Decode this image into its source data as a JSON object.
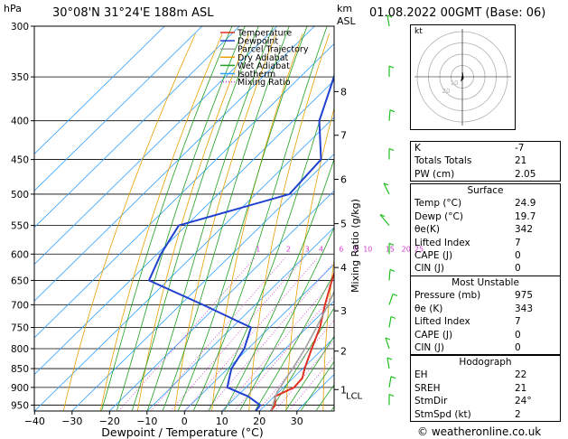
{
  "header": {
    "hpa_label": "hPa",
    "location": "30°08'N  31°24'E  188m  ASL",
    "km_label": "km",
    "asl_label": "ASL",
    "datetime": "01.08.2022  00GMT  (Base: 06)"
  },
  "chart_data": {
    "type": "line",
    "title": "30°08'N 31°24'E 188m ASL",
    "xlabel": "Dewpoint / Temperature (°C)",
    "ylabel": "hPa",
    "right_axis_label": "Mixing Ratio (g/kg)",
    "x_ticks": [
      -40,
      -30,
      -20,
      -10,
      0,
      10,
      20,
      30
    ],
    "x_tick_labels": [
      "−40",
      "−30",
      "−20",
      "−10",
      "0",
      "10",
      "20",
      "30"
    ],
    "pressure_ticks": [
      300,
      350,
      400,
      450,
      500,
      550,
      600,
      650,
      700,
      750,
      800,
      850,
      900,
      950
    ],
    "km_ticks": [
      {
        "label": "8",
        "pressure": 366
      },
      {
        "label": "7",
        "pressure": 418
      },
      {
        "label": "6",
        "pressure": 478
      },
      {
        "label": "5",
        "pressure": 547
      },
      {
        "label": "4",
        "pressure": 625
      },
      {
        "label": "3",
        "pressure": 713
      },
      {
        "label": "2",
        "pressure": 806
      },
      {
        "label": "1",
        "pressure": 906
      }
    ],
    "lcl_label": "LCL",
    "lcl_pressure": 912,
    "mixing_ratio_labels": [
      "1",
      "2",
      "3",
      "4",
      "6",
      "8",
      "10",
      "15",
      "20",
      "25"
    ],
    "mixing_ratio_values": [
      1,
      2,
      3,
      4,
      6,
      8,
      10,
      15,
      20,
      25
    ],
    "legend": [
      "Temperature",
      "Dewpoint",
      "Parcel Trajectory",
      "Dry Adiabat",
      "Wet Adiabat",
      "Isotherm",
      "Mixing Ratio"
    ],
    "series": [
      {
        "name": "Temperature",
        "color": "#e03020",
        "points": [
          [
            967,
            23.0
          ],
          [
            950,
            22.6
          ],
          [
            925,
            20.2
          ],
          [
            900,
            22.8
          ],
          [
            875,
            22.5
          ],
          [
            850,
            20.5
          ],
          [
            800,
            17.0
          ],
          [
            750,
            13.4
          ],
          [
            700,
            8.6
          ],
          [
            650,
            3.8
          ],
          [
            600,
            -1.0
          ],
          [
            550,
            -6.5
          ],
          [
            500,
            -11.8
          ],
          [
            450,
            -19.0
          ],
          [
            400,
            -26.5
          ],
          [
            358,
            -34.3
          ]
        ]
      },
      {
        "name": "Dewpoint",
        "color": "#2040d0",
        "points": [
          [
            967,
            19.0
          ],
          [
            950,
            18.6
          ],
          [
            925,
            13.0
          ],
          [
            900,
            5.0
          ],
          [
            875,
            3.0
          ],
          [
            850,
            1.0
          ],
          [
            800,
            -1.0
          ],
          [
            750,
            -5.0
          ],
          [
            700,
            -24.0
          ],
          [
            650,
            -45.0
          ],
          [
            600,
            -49.0
          ],
          [
            550,
            -52.0
          ],
          [
            500,
            -31.0
          ],
          [
            450,
            -32.0
          ],
          [
            400,
            -43.0
          ],
          [
            350,
            -51.0
          ],
          [
            300,
            -60.0
          ]
        ]
      },
      {
        "name": "Parcel Trajectory",
        "color": "#a0a0a0",
        "points": [
          [
            967,
            23.0
          ],
          [
            912,
            19.5
          ],
          [
            850,
            17.3
          ],
          [
            800,
            15.2
          ],
          [
            750,
            12.5
          ],
          [
            700,
            9.4
          ],
          [
            650,
            5.8
          ],
          [
            600,
            1.6
          ],
          [
            550,
            -3.3
          ],
          [
            500,
            -9.0
          ],
          [
            450,
            -15.8
          ],
          [
            400,
            -23.6
          ],
          [
            350,
            -33.0
          ],
          [
            300,
            -44.0
          ]
        ]
      }
    ],
    "colors": {
      "temperature": "#e03020",
      "dewpoint": "#2040d0",
      "parcel": "#a0a0a0",
      "dry_adiabat": "#e8a000",
      "wet_adiabat": "#20a020",
      "isotherm": "#30a0ff",
      "mixing_ratio": "#d040d0"
    },
    "wind_barbs_color": "#20c020"
  },
  "hodograph": {
    "label": "kt",
    "ring_labels": [
      "10",
      "20"
    ],
    "ring_values_kt": [
      10,
      20,
      30,
      40
    ]
  },
  "indices": [
    {
      "label": "K",
      "value": "-7"
    },
    {
      "label": "Totals Totals",
      "value": "21"
    },
    {
      "label": "PW (cm)",
      "value": "2.05"
    }
  ],
  "surface": {
    "title": "Surface",
    "rows": [
      {
        "label": "Temp (°C)",
        "value": "24.9"
      },
      {
        "label": "Dewp (°C)",
        "value": "19.7"
      },
      {
        "label": "θe(K)",
        "value": "342"
      },
      {
        "label": "Lifted Index",
        "value": "7"
      },
      {
        "label": "CAPE (J)",
        "value": "0"
      },
      {
        "label": "CIN (J)",
        "value": "0"
      }
    ]
  },
  "most_unstable": {
    "title": "Most Unstable",
    "rows": [
      {
        "label": "Pressure (mb)",
        "value": "975"
      },
      {
        "label": "θe (K)",
        "value": "343"
      },
      {
        "label": "Lifted Index",
        "value": "7"
      },
      {
        "label": "CAPE (J)",
        "value": "0"
      },
      {
        "label": "CIN (J)",
        "value": "0"
      }
    ]
  },
  "hodograph_stats": {
    "title": "Hodograph",
    "rows": [
      {
        "label": "EH",
        "value": "22"
      },
      {
        "label": "SREH",
        "value": "21"
      },
      {
        "label": "StmDir",
        "value": "24°"
      },
      {
        "label": "StmSpd (kt)",
        "value": "2"
      }
    ]
  },
  "footer": {
    "credit": "© weatheronline.co.uk"
  }
}
